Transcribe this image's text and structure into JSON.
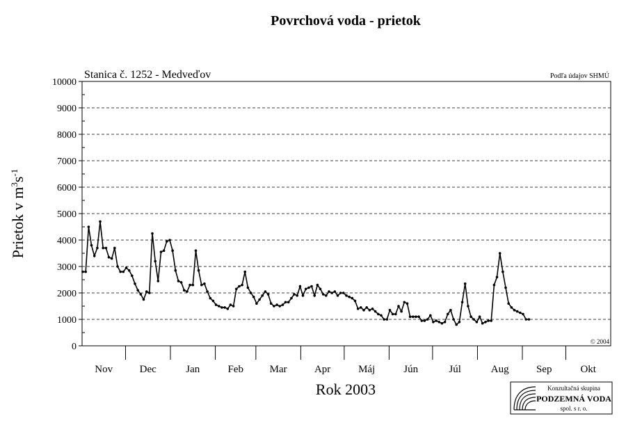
{
  "chart_data": {
    "type": "line",
    "title": "Povrchová voda - prietok",
    "station_label": "Stanica č. 1252 - Medveďov",
    "source_note": "Podľa údajov SHMÚ",
    "copyright": "© 2004",
    "ylabel_main": "Prietok v m",
    "ylabel_sup1": "3",
    "ylabel_mid": "s",
    "ylabel_sup2": "-1",
    "xlabel": "Rok 2003",
    "ylim": [
      0,
      10000
    ],
    "yticks": [
      "0",
      "1000",
      "2000",
      "3000",
      "4000",
      "5000",
      "6000",
      "7000",
      "8000",
      "9000",
      "10000"
    ],
    "months": [
      "Nov",
      "Dec",
      "Jan",
      "Feb",
      "Mar",
      "Apr",
      "Máj",
      "Jún",
      "Júl",
      "Aug",
      "Sep",
      "Okt"
    ],
    "grid": "dashed horizontal",
    "series": [
      {
        "color": "#000000",
        "days_per_point": 2,
        "values": [
          2800,
          2800,
          4500,
          3800,
          3400,
          3700,
          4700,
          3700,
          3700,
          3350,
          3300,
          3700,
          3000,
          2800,
          2800,
          2950,
          2850,
          2650,
          2350,
          2100,
          1950,
          1750,
          2050,
          2000,
          4250,
          3200,
          2450,
          3550,
          3600,
          3950,
          4000,
          3600,
          2850,
          2450,
          2400,
          2100,
          2050,
          2300,
          2300,
          3600,
          2850,
          2300,
          2350,
          2050,
          1800,
          1700,
          1550,
          1500,
          1450,
          1450,
          1400,
          1550,
          1500,
          2150,
          2250,
          2300,
          2800,
          2200,
          2000,
          1850,
          1600,
          1750,
          1900,
          2050,
          1950,
          1600,
          1500,
          1550,
          1500,
          1550,
          1650,
          1650,
          1800,
          1950,
          1900,
          2250,
          1900,
          2150,
          2200,
          2250,
          1900,
          2300,
          2150,
          1950,
          1900,
          2050,
          2000,
          2050,
          1900,
          2000,
          2000,
          1900,
          1850,
          1800,
          1700,
          1400,
          1450,
          1350,
          1450,
          1350,
          1400,
          1300,
          1200,
          1150,
          1000,
          1000,
          1350,
          1200,
          1200,
          1500,
          1300,
          1650,
          1600,
          1100,
          1100,
          1100,
          1100,
          950,
          950,
          1000,
          1150,
          900,
          950,
          900,
          850,
          900,
          1200,
          1350,
          1000,
          800,
          900,
          1650,
          2350,
          1500,
          1100,
          1000,
          900,
          1100,
          850,
          900,
          950,
          950,
          2300,
          2600,
          3500,
          2800,
          2200,
          1600,
          1450,
          1350,
          1300,
          1250,
          1200,
          1000,
          1000
        ]
      }
    ]
  },
  "logo": {
    "line1": "Konzultačná skupina",
    "line2": "PODZEMNÁ VODA",
    "line3": "spol. s r. o."
  }
}
